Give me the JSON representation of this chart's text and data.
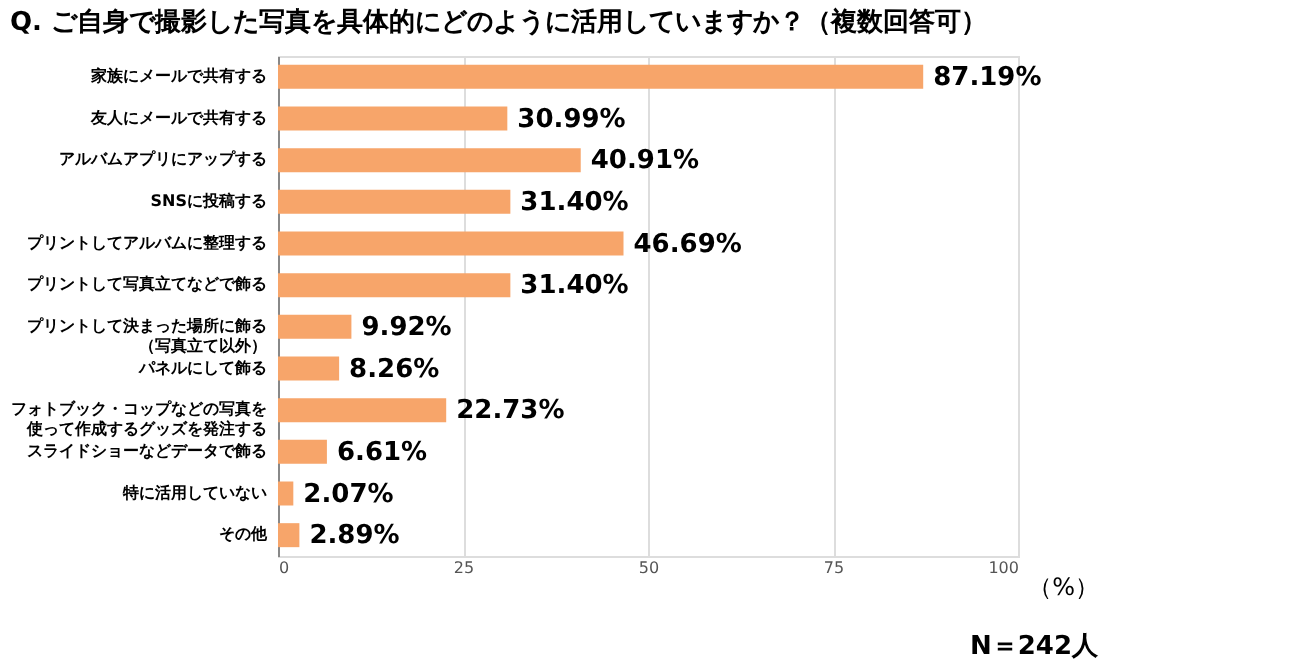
{
  "chart_data": {
    "type": "bar",
    "orientation": "horizontal",
    "title": "Q. ご自身で撮影した写真を具体的にどのように活用していますか？（複数回答可）",
    "xlabel": "（%）",
    "categories": [
      "家族にメールで共有する",
      "友人にメールで共有する",
      "アルバムアプリにアップする",
      "SNSに投稿する",
      "プリントしてアルバムに整理する",
      "プリントして写真立てなどで飾る",
      "プリントして決まった場所に飾る（写真立て以外）",
      "パネルにして飾る",
      "フォトブック・コップなどの写真を使って作成するグッズを発注する",
      "スライドショーなどデータで飾る",
      "特に活用していない",
      "その他"
    ],
    "values": [
      87.19,
      30.99,
      40.91,
      31.4,
      46.69,
      31.4,
      9.92,
      8.26,
      22.73,
      6.61,
      2.07,
      2.89
    ],
    "value_labels": [
      "87.19%",
      "30.99%",
      "40.91%",
      "31.40%",
      "46.69%",
      "31.40%",
      "9.92%",
      "8.26%",
      "22.73%",
      "6.61%",
      "2.07%",
      "2.89%"
    ],
    "color": "#f7a56a",
    "xlim": [
      0,
      100
    ],
    "xticks": [
      0,
      25,
      50,
      75,
      100
    ],
    "grid": "x",
    "annotations": [
      "N＝242人"
    ]
  }
}
